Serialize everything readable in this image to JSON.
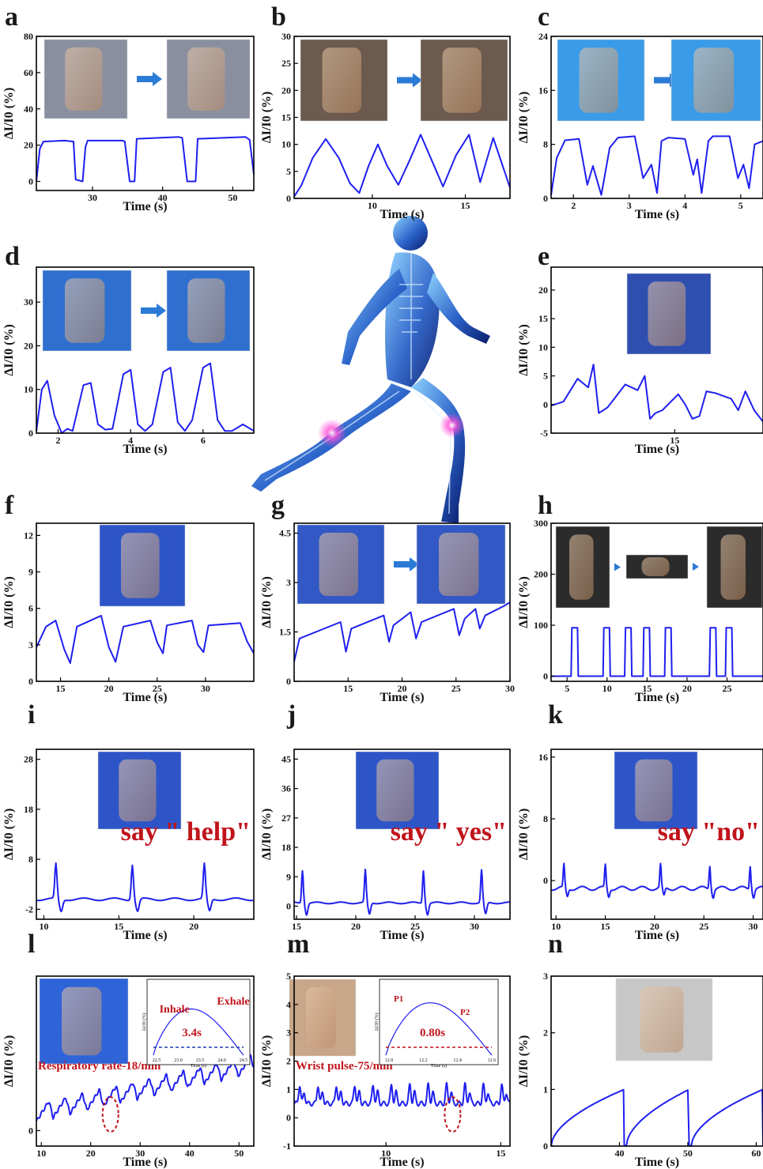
{
  "figure": {
    "colors": {
      "line": "#1f1ff0",
      "axis": "#000000",
      "annotation": "#c0141b",
      "photo_blue": "#2a6fd6"
    },
    "center_image": "glowing-skeleton-runner-illustration"
  },
  "chart_data": [
    {
      "id": "a",
      "letter": "a",
      "type": "line",
      "xlabel": "Time (s)",
      "ylabel": "ΔI/I0 (%)",
      "xlim": [
        22,
        53
      ],
      "ylim": [
        -5,
        80
      ],
      "xticks": [
        30,
        40,
        50
      ],
      "yticks": [
        0,
        20,
        40,
        60,
        80
      ],
      "x": [
        22,
        22.5,
        23,
        26,
        27.3,
        27.6,
        28.6,
        29,
        29.3,
        34.3,
        34.6,
        35.3,
        36,
        36.3,
        42.3,
        42.8,
        43.5,
        44.7,
        45,
        51.8,
        52.4,
        53
      ],
      "y": [
        0,
        18,
        22,
        22.5,
        22,
        1,
        0,
        19,
        22.5,
        22.5,
        22,
        0,
        0,
        23.5,
        24.5,
        24,
        0,
        0,
        23.5,
        24.5,
        23,
        4
      ],
      "photos": [
        "arm-straight-photo",
        "arm-bent-photo"
      ]
    },
    {
      "id": "b",
      "letter": "b",
      "type": "line",
      "xlabel": "Time (s)",
      "ylabel": "ΔI/I0 (%)",
      "xlim": [
        5.8,
        17.4
      ],
      "ylim": [
        0,
        30
      ],
      "xticks": [
        10,
        15
      ],
      "yticks": [
        0,
        5,
        10,
        15,
        20,
        25,
        30
      ],
      "x": [
        5.8,
        6.2,
        6.8,
        7.5,
        8.2,
        8.8,
        9.3,
        9.8,
        10.3,
        10.8,
        11.4,
        12,
        12.6,
        13.2,
        13.8,
        14.5,
        15.2,
        15.8,
        16.5,
        17.4
      ],
      "y": [
        0.3,
        2.5,
        7.5,
        11,
        7.5,
        2.8,
        1,
        6,
        10,
        6,
        2.5,
        7,
        11.8,
        7,
        2.2,
        8,
        11.8,
        3,
        11.2,
        2
      ],
      "photos": [
        "leg-straight-photo",
        "leg-bent-photo"
      ]
    },
    {
      "id": "c",
      "letter": "c",
      "type": "line",
      "xlabel": "Time (s)",
      "ylabel": "ΔI/I0 (%)",
      "xlim": [
        1.6,
        5.4
      ],
      "ylim": [
        0,
        24
      ],
      "xticks": [
        2,
        3,
        4,
        5
      ],
      "yticks": [
        0,
        8,
        16,
        24
      ],
      "x": [
        1.6,
        1.7,
        1.85,
        2.1,
        2.25,
        2.35,
        2.5,
        2.65,
        2.8,
        3.1,
        3.25,
        3.4,
        3.5,
        3.58,
        3.7,
        4,
        4.15,
        4.22,
        4.3,
        4.42,
        4.5,
        4.8,
        4.95,
        5.05,
        5.15,
        5.25,
        5.4
      ],
      "y": [
        0.5,
        6,
        8.6,
        8.8,
        2,
        4.8,
        0.5,
        7.5,
        9,
        9.2,
        3,
        5,
        0.8,
        8.5,
        9,
        8.8,
        3.5,
        5.8,
        0.8,
        8.5,
        9.2,
        9.2,
        3,
        5,
        1.5,
        8,
        8.5
      ],
      "photos": [
        "finger-straight-photo",
        "finger-bent-photo"
      ]
    },
    {
      "id": "d",
      "letter": "d",
      "type": "line",
      "xlabel": "Time (s)",
      "ylabel": "ΔI/I0 (%)",
      "xlim": [
        1.4,
        7.4
      ],
      "ylim": [
        0,
        38
      ],
      "xticks": [
        2,
        4,
        6
      ],
      "yticks": [
        0,
        10,
        20,
        30
      ],
      "x": [
        1.4,
        1.55,
        1.7,
        1.9,
        2.1,
        2.25,
        2.4,
        2.7,
        2.9,
        3.1,
        3.3,
        3.5,
        3.8,
        4,
        4.2,
        4.4,
        4.6,
        4.9,
        5.1,
        5.3,
        5.5,
        5.7,
        6,
        6.2,
        6.4,
        6.6,
        6.8,
        7.1,
        7.4
      ],
      "y": [
        0.5,
        10,
        12,
        4,
        0,
        1,
        0.5,
        11,
        11.5,
        2,
        0.8,
        1,
        13.5,
        14.5,
        2,
        0.5,
        2,
        14,
        15,
        2.5,
        0.5,
        3,
        15,
        16,
        3,
        0.5,
        0.5,
        2,
        0.5
      ],
      "photos": [
        "wrist-straight-photo",
        "wrist-bent-photo"
      ]
    },
    {
      "id": "e",
      "letter": "e",
      "type": "line",
      "xlabel": "Time (s)",
      "ylabel": "ΔI/I0 (%)",
      "xlim": [
        8,
        20
      ],
      "ylim": [
        -5,
        24
      ],
      "xticks": [
        15
      ],
      "yticks": [
        -5,
        0,
        5,
        10,
        15,
        20
      ],
      "x": [
        8,
        8.7,
        9.5,
        10.1,
        10.4,
        10.7,
        11.2,
        12.2,
        12.9,
        13.3,
        13.6,
        13.9,
        14.3,
        15.2,
        15.6,
        16,
        16.4,
        16.8,
        17.3,
        18.2,
        18.6,
        19,
        19.5,
        20
      ],
      "y": [
        -0.2,
        0.5,
        4.5,
        3,
        7,
        -1.5,
        -0.5,
        3.5,
        2.5,
        5,
        -2.5,
        -1.5,
        -1,
        1.8,
        0,
        -2.5,
        -2,
        2.3,
        2,
        1,
        -1,
        2.3,
        -1,
        -3
      ],
      "photos": [
        "neck-sensor-photo"
      ]
    },
    {
      "id": "f",
      "letter": "f",
      "type": "line",
      "xlabel": "Time (s)",
      "ylabel": "ΔI/I0 (%)",
      "xlim": [
        12.5,
        35
      ],
      "ylim": [
        0,
        13
      ],
      "xticks": [
        15,
        20,
        25,
        30
      ],
      "yticks": [
        0,
        3,
        6,
        9,
        12
      ],
      "x": [
        12.5,
        13.5,
        14.5,
        15.4,
        16,
        16.7,
        19.2,
        20,
        20.7,
        21.5,
        24.3,
        25,
        25.6,
        26,
        28.6,
        29.2,
        29.8,
        30.3,
        33.6,
        34.3,
        35
      ],
      "y": [
        2.8,
        4.5,
        5,
        2.6,
        1.5,
        4.5,
        5.4,
        2.8,
        1.6,
        4.5,
        5,
        3.2,
        2.3,
        4.6,
        5,
        3,
        2.4,
        4.6,
        4.8,
        3.3,
        2.3
      ],
      "photos": [
        "throat-sensor-photo"
      ]
    },
    {
      "id": "g",
      "letter": "g",
      "type": "line",
      "xlabel": "Time (s)",
      "ylabel": "ΔI/I0 (%)",
      "xlim": [
        10,
        30
      ],
      "ylim": [
        0,
        4.8
      ],
      "xticks": [
        15,
        20,
        25,
        30
      ],
      "yticks": [
        0.0,
        1.5,
        3.0,
        4.5
      ],
      "x": [
        10,
        10.5,
        14.3,
        14.8,
        15.3,
        18.3,
        18.8,
        19.2,
        20.8,
        21.3,
        21.8,
        24.8,
        25.3,
        25.8,
        26.8,
        27.2,
        27.7,
        29.5,
        30
      ],
      "y": [
        0.6,
        1.3,
        1.8,
        0.9,
        1.6,
        2,
        1.2,
        1.7,
        2.1,
        1.3,
        1.8,
        2.2,
        1.4,
        1.9,
        2.2,
        1.6,
        2,
        2.3,
        2.4
      ],
      "photos": [
        "cheek-closed-mouth-photo",
        "cheek-open-mouth-photo"
      ]
    },
    {
      "id": "h",
      "letter": "h",
      "type": "line",
      "xlabel": "Time (s)",
      "ylabel": "ΔI/I0 (%)",
      "xlim": [
        3,
        29.5
      ],
      "ylim": [
        -10,
        300
      ],
      "xticks": [
        5,
        10,
        15,
        20,
        25
      ],
      "yticks": [
        0,
        100,
        200,
        300
      ],
      "pulses": [
        [
          5.5,
          6.4
        ],
        [
          9.5,
          10.4
        ],
        [
          12.2,
          13.1
        ],
        [
          14.5,
          15.4
        ],
        [
          17.2,
          18.1
        ],
        [
          22.8,
          23.7
        ],
        [
          24.8,
          25.7
        ]
      ],
      "pulse_height": 95,
      "photos": [
        "trouser-leg-photo",
        "shoe-photo",
        "knee-bent-photo"
      ]
    },
    {
      "id": "i",
      "letter": "i",
      "type": "line",
      "xlabel": "Time (s)",
      "ylabel": "ΔI/I0 (%)",
      "xlim": [
        9.5,
        24
      ],
      "ylim": [
        -4,
        30
      ],
      "xticks": [
        10,
        15,
        20
      ],
      "yticks": [
        -2,
        8,
        18,
        28
      ],
      "spike_times": [
        10.8,
        15.9,
        20.7
      ],
      "spike_height": 7,
      "baseline": 0,
      "annotation": "say  \" help\"",
      "photos": [
        "throat-sensor-photo"
      ]
    },
    {
      "id": "j",
      "letter": "j",
      "type": "line",
      "xlabel": "Time (s)",
      "ylabel": "ΔI/I0 (%)",
      "xlim": [
        14.8,
        33
      ],
      "ylim": [
        -4,
        48
      ],
      "xticks": [
        15,
        20,
        25,
        30
      ],
      "yticks": [
        0,
        9,
        18,
        27,
        36,
        45
      ],
      "spike_times": [
        15.5,
        20.8,
        25.7,
        30.6
      ],
      "spike_height": 10,
      "baseline": 1,
      "annotation": "say \" yes\"",
      "photos": [
        "throat-sensor-photo"
      ]
    },
    {
      "id": "k",
      "letter": "k",
      "type": "line",
      "xlabel": "Time (s)",
      "ylabel": "ΔI/I0 (%)",
      "xlim": [
        9.5,
        31
      ],
      "ylim": [
        -5,
        17
      ],
      "xticks": [
        10,
        15,
        20,
        25,
        30
      ],
      "yticks": [
        0,
        8,
        16
      ],
      "spike_times": [
        10.8,
        15,
        20.6,
        25.6,
        29.7
      ],
      "spike_height": 3,
      "baseline": -1,
      "annotation": "say \"no\"",
      "photos": [
        "throat-sensor-photo"
      ]
    },
    {
      "id": "l",
      "letter": "l",
      "type": "line",
      "xlabel": "Time (s)",
      "ylabel": "ΔI/I0 (%)",
      "xlim": [
        9,
        53
      ],
      "ylim": [
        -2,
        20
      ],
      "xticks": [
        10,
        20,
        30,
        40,
        50
      ],
      "yticks": [
        0
      ],
      "cycle_s": 3.4,
      "trend": [
        [
          9,
          1.2
        ],
        [
          53,
          7.5
        ]
      ],
      "amplitude": 2.5,
      "annotation": "Respiratory rate-18/min",
      "inset": {
        "labels": [
          "Inhale",
          "Exhale"
        ],
        "period_label": "3.4s",
        "xticks": [
          "22.5",
          "23.0",
          "23.5",
          "24.0",
          "24.5"
        ],
        "yticks": [
          "1.5",
          "3.0"
        ],
        "xlabel": "Time (s)",
        "ylabel": "ΔI/I0 (%)"
      },
      "photos": [
        "chest-sensor-photo"
      ]
    },
    {
      "id": "m",
      "letter": "m",
      "type": "line",
      "xlabel": "Time (s)",
      "ylabel": "ΔI/I0 (%)",
      "xlim": [
        6,
        15.4
      ],
      "ylim": [
        -1,
        5
      ],
      "xticks": [
        10,
        15
      ],
      "yticks": [
        -1,
        0,
        1,
        2,
        3,
        4,
        5
      ],
      "cycle_s": 0.8,
      "baseline": 0.5,
      "amplitude": 0.6,
      "annotation": "Wrist pulse-75/min",
      "inset": {
        "labels": [
          "P1",
          "P2"
        ],
        "period_label": "0.80s",
        "xticks": [
          "12.0",
          "12.2",
          "12.4",
          "12.6"
        ],
        "yticks": [
          "0.0",
          "0.2",
          "0.4",
          "0.6",
          "0.8",
          "1.0",
          "1.2",
          "1.4"
        ],
        "xlabel": "Time (s)",
        "ylabel": "ΔI/I0 (%)"
      },
      "photos": [
        "wrist-sensor-photo"
      ]
    },
    {
      "id": "n",
      "letter": "n",
      "type": "line",
      "xlabel": "Time (s)",
      "ylabel": "ΔI/I0 (%)",
      "xlim": [
        30,
        61
      ],
      "ylim": [
        0,
        3
      ],
      "xticks": [
        40,
        50,
        60
      ],
      "yticks": [
        0,
        1,
        2,
        3
      ],
      "segments": [
        [
          30,
          40.7
        ],
        [
          41,
          50.2
        ],
        [
          50.5,
          61
        ]
      ],
      "rise_to": 1.0,
      "photos": [
        "mouth-breath-photo"
      ]
    }
  ]
}
